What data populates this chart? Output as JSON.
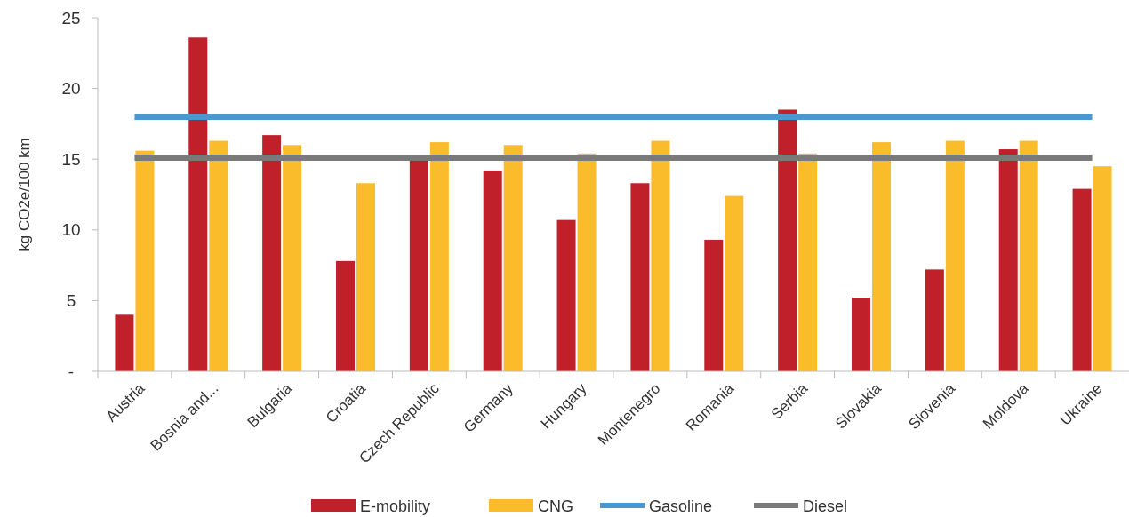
{
  "chart_data": {
    "type": "bar",
    "ylabel": "kg CO2e/100 km",
    "categories": [
      "Austria",
      "Bosnia and...",
      "Bulgaria",
      "Croatia",
      "Czech Republic",
      "Germany",
      "Hungary",
      "Montenegro",
      "Romania",
      "Serbia",
      "Slovakia",
      "Slovenia",
      "Moldova",
      "Ukraine"
    ],
    "series": [
      {
        "name": "E-mobility",
        "color": "#c0202a",
        "values": [
          4.0,
          23.6,
          16.7,
          7.8,
          15.1,
          14.2,
          10.7,
          13.3,
          9.3,
          18.5,
          5.2,
          7.2,
          15.7,
          12.9
        ]
      },
      {
        "name": "CNG",
        "color": "#fbbc2c",
        "values": [
          15.6,
          16.3,
          16.0,
          13.3,
          16.2,
          16.0,
          15.4,
          16.3,
          12.4,
          15.4,
          16.2,
          16.3,
          16.3,
          14.5
        ]
      },
      {
        "name": "Gasoline",
        "type": "line",
        "color": "#4a98d3",
        "values": [
          18,
          18,
          18,
          18,
          18,
          18,
          18,
          18,
          18,
          18,
          18,
          18,
          18,
          18
        ]
      },
      {
        "name": "Diesel",
        "type": "line",
        "color": "#7a7a7a",
        "values": [
          15.1,
          15.1,
          15.1,
          15.1,
          15.1,
          15.1,
          15.1,
          15.1,
          15.1,
          15.1,
          15.1,
          15.1,
          15.1,
          15.1
        ]
      }
    ],
    "ylim": [
      0,
      25
    ],
    "yticks": [
      {
        "value": 0,
        "label": "-"
      },
      5,
      10,
      15,
      20,
      25
    ],
    "legend": "bottom"
  }
}
